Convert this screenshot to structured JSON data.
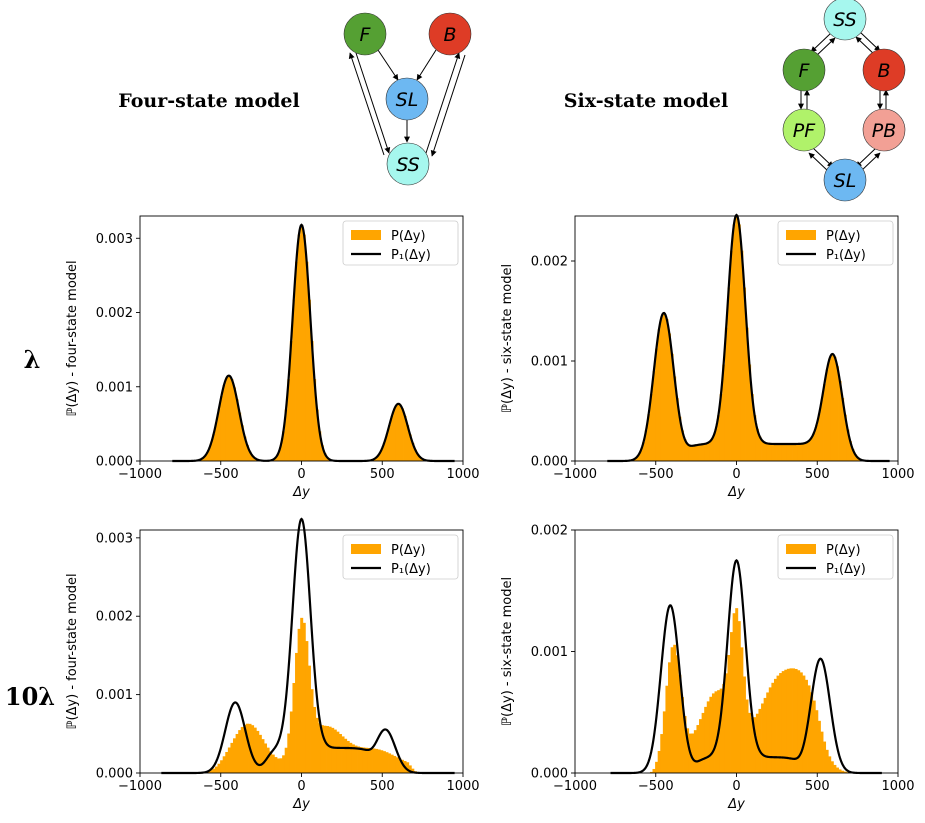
{
  "models": {
    "four": {
      "title": "Four-state model",
      "nodes": {
        "F": {
          "label": "F",
          "color": "#55a033"
        },
        "B": {
          "label": "B",
          "color": "#de3c26"
        },
        "SL": {
          "label": "SL",
          "color": "#6db8f2"
        },
        "SS": {
          "label": "SS",
          "color": "#a6f7ee"
        }
      }
    },
    "six": {
      "title": "Six-state model",
      "nodes": {
        "SS": {
          "label": "SS",
          "color": "#a6f7ee"
        },
        "F": {
          "label": "F",
          "color": "#55a033"
        },
        "B": {
          "label": "B",
          "color": "#de3c26"
        },
        "PF": {
          "label": "PF",
          "color": "#b0f26a"
        },
        "PB": {
          "label": "PB",
          "color": "#f2a095"
        },
        "SL": {
          "label": "SL",
          "color": "#6db8f2"
        }
      }
    }
  },
  "row_labels": [
    "λ",
    "10λ"
  ],
  "colors": {
    "histogram": "#ffa500",
    "curve": "#000000"
  },
  "chart_data": [
    {
      "type": "histogram+line",
      "ylabel": "ℙ(Δy) - four-state model",
      "xlabel": "Δy",
      "xlim": [
        -1000,
        1000
      ],
      "ylim": [
        0,
        0.0033
      ],
      "xticks": [
        "−1000",
        "−500",
        "0",
        "500",
        "1000"
      ],
      "yticks": [
        "0.000",
        "0.001",
        "0.002",
        "0.003"
      ],
      "legend": {
        "position": "top-right",
        "entries": [
          "P(Δy)",
          "P₁(Δy)"
        ]
      },
      "histogram": {
        "name": "P(Δy)",
        "peaks": [
          [
            -450,
            0.00115,
            62
          ],
          [
            0,
            0.00318,
            55
          ],
          [
            600,
            0.00077,
            58
          ]
        ],
        "range": [
          -800,
          950
        ]
      },
      "curve": {
        "name": "P₁(Δy)",
        "peaks": [
          [
            -450,
            0.00115,
            62
          ],
          [
            0,
            0.00318,
            55
          ],
          [
            600,
            0.00077,
            58
          ]
        ],
        "range": [
          -800,
          950
        ]
      }
    },
    {
      "type": "histogram+line",
      "ylabel": "ℙ(Δy) - six-state model",
      "xlabel": "Δy",
      "xlim": [
        -1000,
        1000
      ],
      "ylim": [
        0,
        0.00245
      ],
      "xticks": [
        "−1000",
        "−500",
        "0",
        "500",
        "1000"
      ],
      "yticks": [
        "0.000",
        "0.001",
        "0.002"
      ],
      "legend": {
        "position": "top-right",
        "entries": [
          "P(Δy)",
          "P₁(Δy)"
        ]
      },
      "histogram": {
        "name": "P(Δy)",
        "peaks": [
          [
            -450,
            0.00148,
            62
          ],
          [
            0,
            0.00229,
            55
          ],
          [
            600,
            0.00098,
            58
          ]
        ],
        "plateau": [
          [
            -300,
            600,
            0.00017
          ]
        ],
        "range": [
          -800,
          950
        ]
      },
      "curve": {
        "name": "P₁(Δy)",
        "peaks": [
          [
            -450,
            0.00148,
            62
          ],
          [
            0,
            0.00229,
            55
          ],
          [
            600,
            0.00098,
            58
          ]
        ],
        "plateau": [
          [
            -300,
            600,
            0.00017
          ]
        ],
        "range": [
          -800,
          950
        ]
      }
    },
    {
      "type": "histogram+line",
      "ylabel": "ℙ(Δy) - four-state model",
      "xlabel": "Δy",
      "xlim": [
        -1000,
        1000
      ],
      "ylim": [
        0,
        0.0031
      ],
      "xticks": [
        "−1000",
        "−500",
        "0",
        "500",
        "1000"
      ],
      "yticks": [
        "0.000",
        "0.001",
        "0.002",
        "0.003"
      ],
      "legend": {
        "position": "top-right",
        "entries": [
          "P(Δy)",
          "P₁(Δy)"
        ]
      },
      "histogram": {
        "name": "P(Δy)",
        "peaks": [
          [
            -330,
            0.00055,
            95
          ],
          [
            0,
            0.0017,
            45
          ],
          [
            150,
            0.0005,
            110
          ],
          [
            450,
            0.00022,
            130
          ]
        ],
        "plateau": [
          [
            -500,
            720,
            8e-05
          ]
        ],
        "range": [
          -640,
          720
        ]
      },
      "curve": {
        "name": "P₁(Δy)",
        "peaks": [
          [
            -410,
            0.0009,
            62
          ],
          [
            0,
            0.00292,
            55
          ],
          [
            520,
            0.00055,
            60
          ]
        ],
        "plateau": [
          [
            -220,
            420,
            0.00032
          ]
        ],
        "range": [
          -870,
          950
        ]
      }
    },
    {
      "type": "histogram+line",
      "ylabel": "ℙ(Δy) - six-state model",
      "xlabel": "Δy",
      "xlim": [
        -1000,
        1000
      ],
      "ylim": [
        0,
        0.002
      ],
      "xticks": [
        "−1000",
        "−500",
        "0",
        "500",
        "1000"
      ],
      "yticks": [
        "0.000",
        "0.001",
        "0.002"
      ],
      "legend": {
        "position": "top-right",
        "entries": [
          "P(Δy)",
          "P₁(Δy)"
        ]
      },
      "histogram": {
        "name": "P(Δy)",
        "peaks": [
          [
            -390,
            0.00105,
            48
          ],
          [
            -120,
            0.00045,
            90
          ],
          [
            0,
            0.00092,
            38
          ],
          [
            260,
            0.00052,
            110
          ],
          [
            430,
            0.0004,
            90
          ]
        ],
        "plateau": [
          [
            -300,
            520,
            0.00022
          ]
        ],
        "range": [
          -560,
          760
        ]
      },
      "curve": {
        "name": "P₁(Δy)",
        "peaks": [
          [
            -410,
            0.00138,
            58
          ],
          [
            0,
            0.00162,
            55
          ],
          [
            520,
            0.00094,
            60
          ]
        ],
        "plateau": [
          [
            -250,
            380,
            0.00013
          ]
        ],
        "range": [
          -780,
          900
        ]
      }
    }
  ]
}
